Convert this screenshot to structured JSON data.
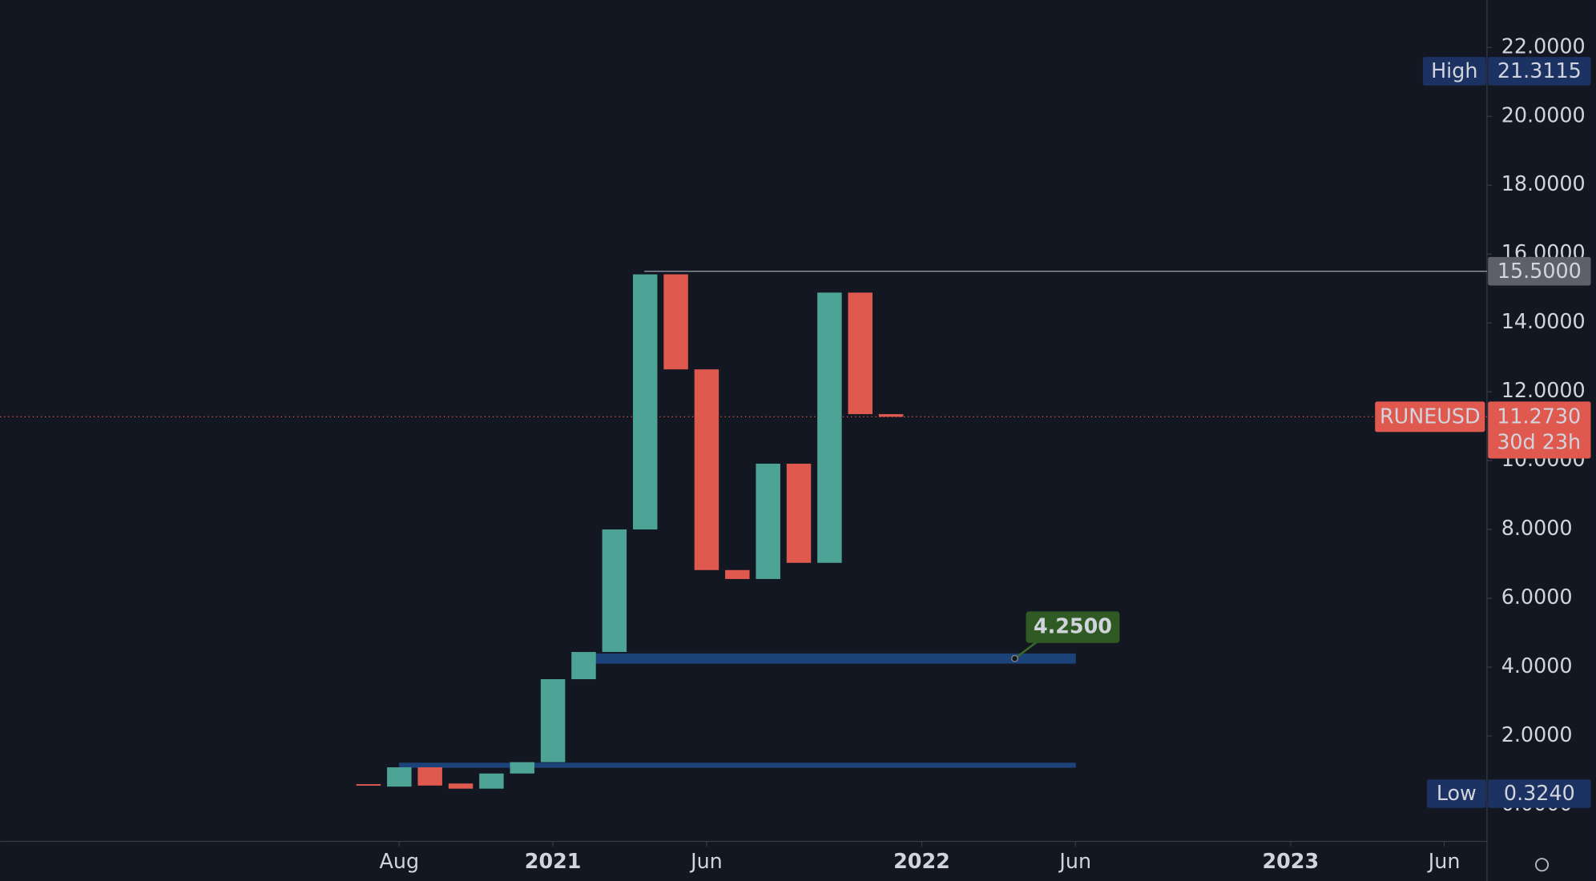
{
  "chart_data": {
    "type": "candlestick",
    "x": [
      "2020-07",
      "2020-08",
      "2020-09",
      "2020-10",
      "2020-11",
      "2020-12",
      "2021-01",
      "2021-02",
      "2021-03",
      "2021-04",
      "2021-05",
      "2021-06",
      "2021-07",
      "2021-08",
      "2021-09",
      "2021-10",
      "2021-11",
      "2021-12"
    ],
    "open": [
      0.6,
      0.53,
      1.09,
      0.62,
      0.47,
      0.91,
      1.24,
      3.65,
      4.44,
      8.0,
      15.41,
      12.65,
      6.82,
      6.56,
      9.91,
      7.03,
      14.88,
      11.35
    ],
    "high": {
      "label": "High",
      "value": 21.3115,
      "value_label": "21.3115"
    },
    "low": {
      "label": "Low",
      "value": 0.324,
      "value_label": "0.3240"
    },
    "close": [
      0.58,
      1.09,
      0.56,
      0.47,
      0.91,
      1.24,
      3.65,
      4.44,
      8.0,
      15.41,
      12.65,
      6.82,
      6.56,
      9.91,
      7.03,
      14.88,
      11.35,
      11.273
    ],
    "up_color": "#4ea397",
    "down_color": "#e0594f",
    "ylim": [
      -1.06,
      23.38
    ],
    "yticks": [
      {
        "value": 0,
        "label": "0.0000"
      },
      {
        "value": 2,
        "label": "2.0000"
      },
      {
        "value": 4,
        "label": "4.0000"
      },
      {
        "value": 6,
        "label": "6.0000"
      },
      {
        "value": 8,
        "label": "8.0000"
      },
      {
        "value": 10,
        "label": "10.0000"
      },
      {
        "value": 12,
        "label": "12.0000"
      },
      {
        "value": 14,
        "label": "14.0000"
      },
      {
        "value": 16,
        "label": "16.0000"
      },
      {
        "value": 18,
        "label": "18.0000"
      },
      {
        "value": 20,
        "label": "20.0000"
      },
      {
        "value": 22,
        "label": "22.0000"
      }
    ],
    "xticks": [
      {
        "value": "2020-08",
        "label": "Aug"
      },
      {
        "value": "2021-01",
        "label": "2021"
      },
      {
        "value": "2021-06",
        "label": "Jun"
      },
      {
        "value": "2022-01",
        "label": "2022"
      },
      {
        "value": "2022-06",
        "label": "Jun"
      },
      {
        "value": "2023-01",
        "label": "2023"
      },
      {
        "value": "2023-06",
        "label": "Jun"
      }
    ],
    "grid": false,
    "price_line": {
      "symbol": "RUNEUSD",
      "value": 11.273,
      "value_label": "11.2730",
      "countdown": "30d 23h"
    },
    "horizontal_line": {
      "value": 15.5,
      "value_label": "15.5000"
    },
    "zones": [
      {
        "value": 4.25,
        "value_label": "4.2500"
      },
      {
        "value": 1.15
      }
    ]
  }
}
